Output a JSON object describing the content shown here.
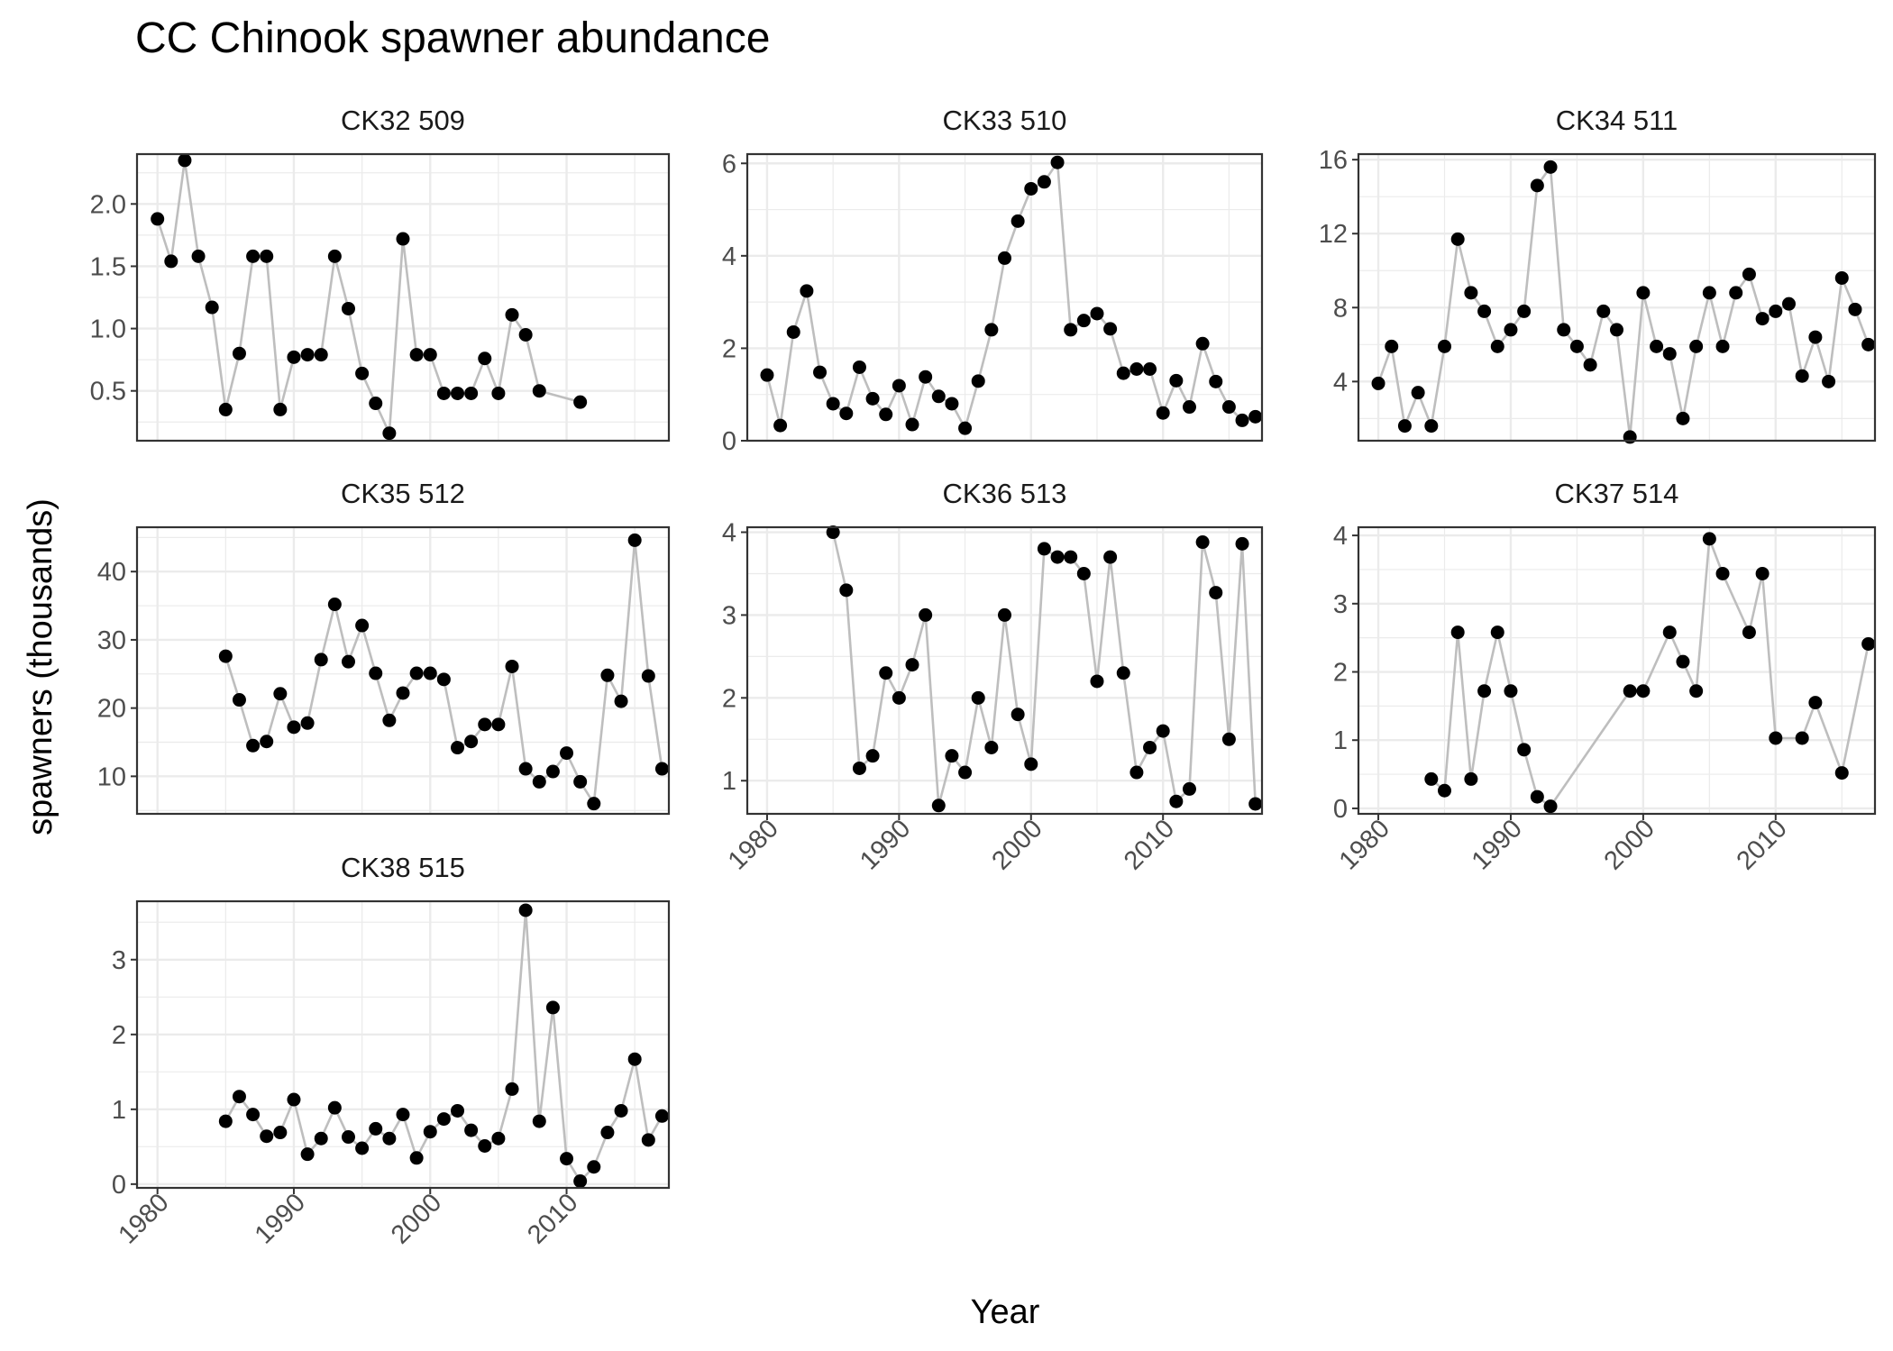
{
  "chart_data": {
    "type": "scatter",
    "title": "CC Chinook spawner abundance",
    "xlabel": "Year",
    "ylabel": "spawners (thousands)",
    "xlim": [
      1978.5,
      2017.5
    ],
    "x_ticks": [
      1980,
      1990,
      2000,
      2010
    ],
    "grid": true,
    "colors": {
      "line": "#bebebe",
      "point": "#000000",
      "grid": "#ebebeb",
      "border": "#333333"
    },
    "panels": [
      {
        "name": "CK32 509",
        "ylim": [
          0.1,
          2.4
        ],
        "y_ticks": [
          0.5,
          1.0,
          1.5,
          2.0
        ],
        "y_tick_labels": [
          "0.5",
          "1.0",
          "1.5",
          "2.0"
        ],
        "x": [
          1980,
          1981,
          1982,
          1983,
          1984,
          1985,
          1986,
          1987,
          1988,
          1989,
          1990,
          1991,
          1992,
          1993,
          1994,
          1995,
          1996,
          1997,
          1998,
          1999,
          2000,
          2001,
          2002,
          2003,
          2004,
          2005,
          2006,
          2007,
          2008,
          2011
        ],
        "y": [
          1.88,
          1.54,
          2.35,
          1.58,
          1.17,
          0.35,
          0.8,
          1.58,
          1.58,
          0.35,
          0.77,
          0.79,
          0.79,
          1.58,
          1.16,
          0.64,
          0.4,
          0.16,
          1.72,
          0.79,
          0.79,
          0.48,
          0.48,
          0.48,
          0.76,
          0.48,
          1.11,
          0.95,
          0.5,
          0.41
        ]
      },
      {
        "name": "CK33 510",
        "ylim": [
          0,
          6.2
        ],
        "y_ticks": [
          0,
          2,
          4,
          6
        ],
        "y_tick_labels": [
          "0",
          "2",
          "4",
          "6"
        ],
        "x": [
          1980,
          1981,
          1982,
          1983,
          1984,
          1985,
          1986,
          1987,
          1988,
          1989,
          1990,
          1991,
          1992,
          1993,
          1994,
          1995,
          1996,
          1997,
          1998,
          1999,
          2000,
          2001,
          2002,
          2003,
          2004,
          2005,
          2006,
          2007,
          2008,
          2009,
          2010,
          2011,
          2012,
          2013,
          2014,
          2015,
          2016,
          2017
        ],
        "y": [
          1.42,
          0.33,
          2.35,
          3.24,
          1.48,
          0.8,
          0.59,
          1.59,
          0.91,
          0.57,
          1.19,
          0.35,
          1.38,
          0.96,
          0.8,
          0.27,
          1.29,
          2.4,
          3.95,
          4.75,
          5.45,
          5.6,
          6.02,
          2.4,
          2.6,
          2.75,
          2.42,
          1.46,
          1.55,
          1.55,
          0.6,
          1.3,
          0.73,
          2.1,
          1.28,
          0.73,
          0.44,
          0.52
        ]
      },
      {
        "name": "CK34 511",
        "ylim": [
          0.8,
          16.3
        ],
        "y_ticks": [
          4,
          8,
          12,
          16
        ],
        "y_tick_labels": [
          "4",
          "8",
          "12",
          "16"
        ],
        "x": [
          1980,
          1981,
          1982,
          1983,
          1984,
          1985,
          1986,
          1987,
          1988,
          1989,
          1990,
          1991,
          1992,
          1993,
          1994,
          1995,
          1996,
          1997,
          1998,
          1999,
          2000,
          2001,
          2002,
          2003,
          2004,
          2005,
          2006,
          2007,
          2008,
          2009,
          2010,
          2011,
          2012,
          2013,
          2014,
          2015,
          2016,
          2017
        ],
        "y": [
          3.9,
          5.9,
          1.6,
          3.4,
          1.6,
          5.9,
          11.7,
          8.8,
          7.8,
          5.9,
          6.8,
          7.8,
          14.6,
          15.6,
          6.8,
          5.9,
          4.9,
          7.8,
          6.8,
          1.0,
          8.8,
          5.9,
          5.5,
          2.0,
          5.9,
          8.8,
          5.9,
          8.8,
          9.8,
          7.4,
          7.8,
          8.2,
          4.3,
          6.4,
          4.0,
          9.6,
          7.9,
          6.0
        ]
      },
      {
        "name": "CK35 512",
        "ylim": [
          4.5,
          46.5
        ],
        "y_ticks": [
          10,
          20,
          30,
          40
        ],
        "y_tick_labels": [
          "10",
          "20",
          "30",
          "40"
        ],
        "x": [
          1985,
          1986,
          1987,
          1988,
          1989,
          1990,
          1991,
          1992,
          1993,
          1994,
          1995,
          1996,
          1997,
          1998,
          1999,
          2000,
          2001,
          2002,
          2003,
          2004,
          2005,
          2006,
          2007,
          2008,
          2009,
          2010,
          2011,
          2012,
          2013,
          2014,
          2015,
          2016,
          2017
        ],
        "y": [
          27.6,
          21.2,
          14.5,
          15.1,
          22.1,
          17.2,
          17.8,
          27.1,
          35.2,
          26.8,
          32.1,
          25.1,
          18.2,
          22.2,
          25.1,
          25.1,
          24.2,
          14.2,
          15.1,
          17.6,
          17.6,
          26.1,
          11.1,
          9.2,
          10.7,
          13.4,
          9.2,
          6.0,
          24.8,
          21.0,
          44.6,
          24.7,
          11.1
        ]
      },
      {
        "name": "CK36 513",
        "ylim": [
          0.6,
          4.06
        ],
        "y_ticks": [
          1,
          2,
          3,
          4
        ],
        "y_tick_labels": [
          "1",
          "2",
          "3",
          "4"
        ],
        "x": [
          1985,
          1986,
          1987,
          1988,
          1989,
          1990,
          1991,
          1992,
          1993,
          1994,
          1995,
          1996,
          1997,
          1998,
          1999,
          2000,
          2001,
          2002,
          2003,
          2004,
          2005,
          2006,
          2007,
          2008,
          2009,
          2010,
          2011,
          2012,
          2013,
          2014,
          2015,
          2016,
          2017
        ],
        "y": [
          4.0,
          3.3,
          1.15,
          1.3,
          2.3,
          2.0,
          2.4,
          3.0,
          0.7,
          1.3,
          1.1,
          2.0,
          1.4,
          3.0,
          1.8,
          1.2,
          3.8,
          3.7,
          3.7,
          3.5,
          2.2,
          3.7,
          2.3,
          1.1,
          1.4,
          1.6,
          0.75,
          0.9,
          3.88,
          3.27,
          1.5,
          3.86,
          0.72
        ]
      },
      {
        "name": "CK37 514",
        "ylim": [
          -0.08,
          4.12
        ],
        "y_ticks": [
          0,
          1,
          2,
          3,
          4
        ],
        "y_tick_labels": [
          "0",
          "1",
          "2",
          "3",
          "4"
        ],
        "x": [
          1984,
          1985,
          1986,
          1987,
          1988,
          1989,
          1990,
          1991,
          1992,
          1993,
          1999,
          2000,
          2002,
          2003,
          2004,
          2005,
          2006,
          2008,
          2009,
          2010,
          2012,
          2013,
          2015,
          2017
        ],
        "y": [
          0.43,
          0.26,
          2.58,
          0.43,
          1.72,
          2.58,
          1.72,
          0.86,
          0.17,
          0.03,
          1.72,
          1.72,
          2.58,
          2.15,
          1.72,
          3.95,
          3.44,
          2.58,
          3.44,
          1.03,
          1.03,
          1.55,
          0.52,
          2.41
        ]
      },
      {
        "name": "CK38 515",
        "ylim": [
          -0.05,
          3.78
        ],
        "y_ticks": [
          0,
          1,
          2,
          3
        ],
        "y_tick_labels": [
          "0",
          "1",
          "2",
          "3"
        ],
        "x": [
          1985,
          1986,
          1987,
          1988,
          1989,
          1990,
          1991,
          1992,
          1993,
          1994,
          1995,
          1996,
          1997,
          1998,
          1999,
          2000,
          2001,
          2002,
          2003,
          2004,
          2005,
          2006,
          2007,
          2008,
          2009,
          2010,
          2011,
          2012,
          2013,
          2014,
          2015,
          2016,
          2017
        ],
        "y": [
          0.84,
          1.17,
          0.93,
          0.64,
          0.69,
          1.13,
          0.4,
          0.61,
          1.02,
          0.63,
          0.48,
          0.74,
          0.61,
          0.93,
          0.35,
          0.7,
          0.87,
          0.98,
          0.72,
          0.51,
          0.61,
          1.27,
          3.66,
          0.84,
          2.36,
          0.34,
          0.04,
          0.23,
          0.69,
          0.98,
          1.67,
          0.59,
          0.91
        ]
      }
    ]
  }
}
